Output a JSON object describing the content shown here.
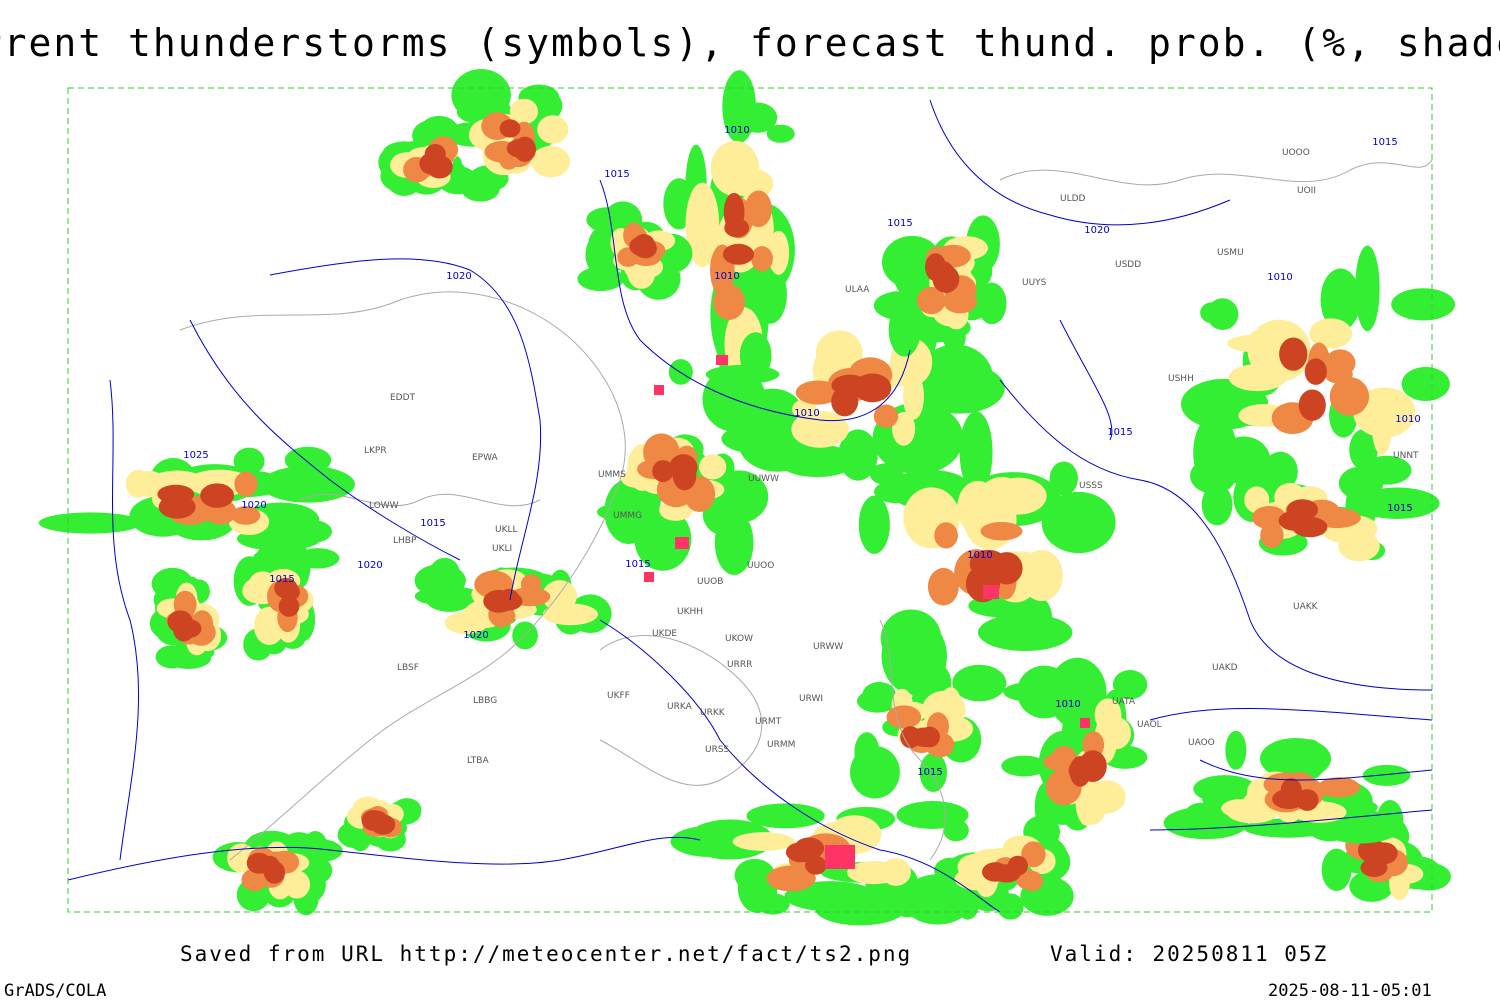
{
  "header": {
    "title": "Current thunderstorms (symbols), forecast thund. prob. (%, shaded)"
  },
  "footer": {
    "source": "Saved from URL http://meteocenter.net/fact/ts2.png",
    "valid": "Valid: 20250811 05Z",
    "software": "GrADS/COLA",
    "timestamp": "2025-08-11-05:01"
  },
  "isobar_labels": [
    "1010",
    "1015",
    "1020",
    "1025",
    "1020",
    "1015",
    "1020",
    "1010",
    "1015",
    "1020",
    "1010",
    "1015",
    "1010",
    "1015",
    "1015",
    "1010",
    "1020",
    "1015",
    "1010",
    "1015",
    "1010",
    "1015"
  ],
  "stations": [
    "ULAA",
    "UUYS",
    "ULDD",
    "USDD",
    "USMU",
    "UOOO",
    "UOII",
    "EDDT",
    "EPWA",
    "LKPR",
    "UMMS",
    "UMMG",
    "UKLL",
    "UKLI",
    "UUOO",
    "UUOB",
    "UKHH",
    "UKDE",
    "UKOW",
    "URRR",
    "UKFF",
    "URKA",
    "URKK",
    "URMT",
    "URMM",
    "URSS",
    "UUWW",
    "URWI",
    "URWW",
    "USSS",
    "UATA",
    "UAOL",
    "UAOO",
    "UAKD",
    "UAKK",
    "USHH",
    "LBSF",
    "LBBG",
    "LTBA",
    "LHBP",
    "LOWW",
    "UNNT"
  ]
}
